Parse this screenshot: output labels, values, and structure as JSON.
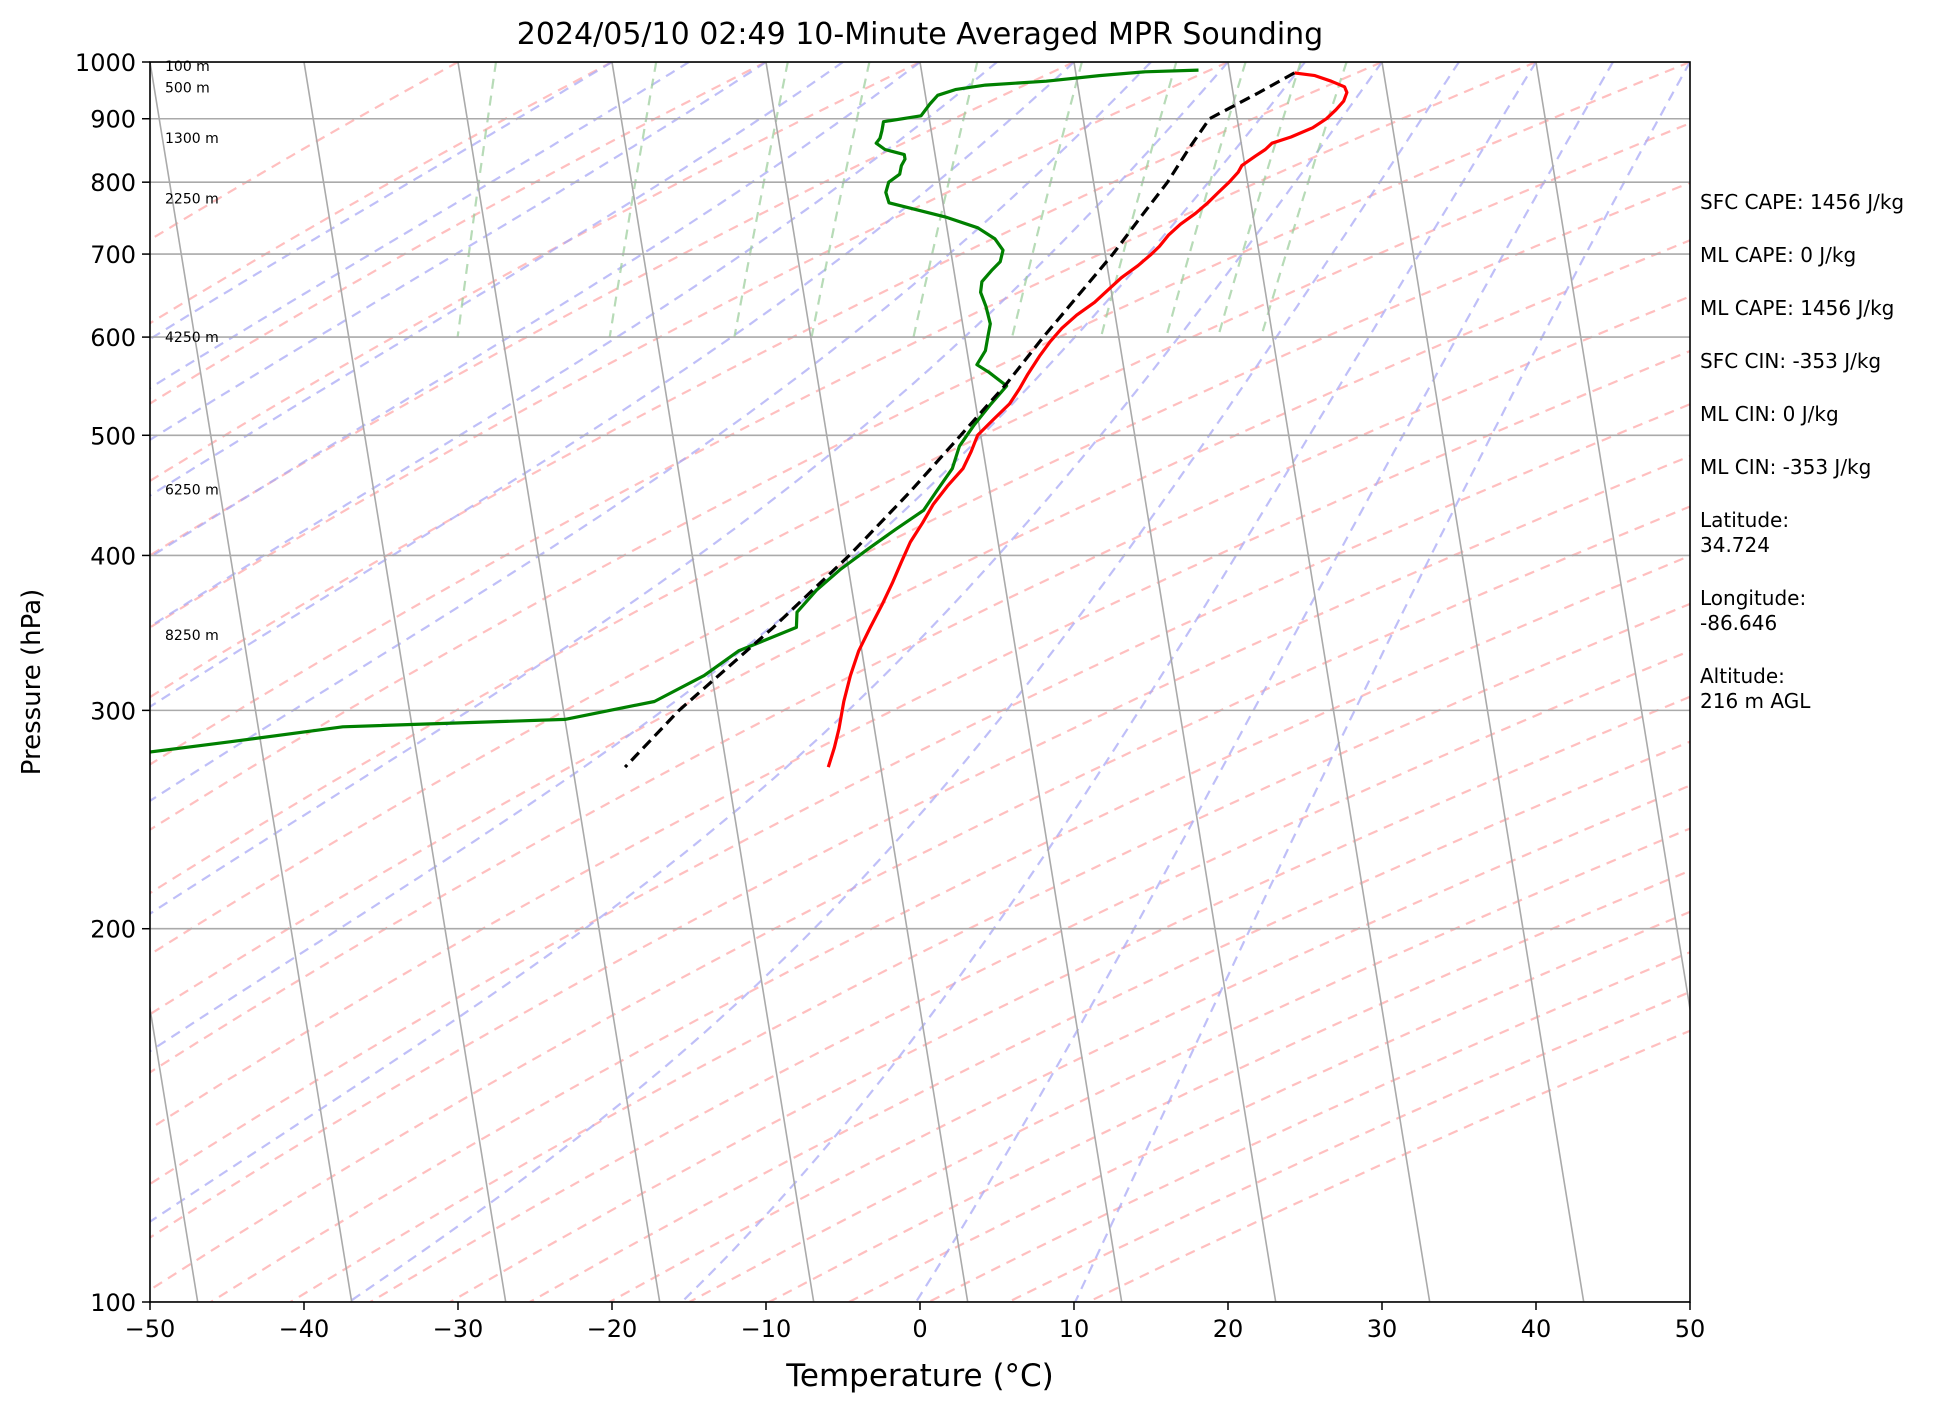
{
  "chart_data": {
    "type": "line",
    "title": "2024/05/10 02:49 10-Minute Averaged MPR Sounding",
    "xlabel": "Temperature (°C)",
    "ylabel": "Pressure (hPa)",
    "xlim": [
      -50,
      50
    ],
    "ylim": [
      1000,
      100
    ],
    "y_scale": "log",
    "skew_t": true,
    "grid": true,
    "x_ticks": [
      "−50",
      "−40",
      "−30",
      "−20",
      "−10",
      "0",
      "10",
      "20",
      "30",
      "40",
      "50"
    ],
    "y_ticks": [
      "100",
      "200",
      "300",
      "400",
      "500",
      "600",
      "700",
      "800",
      "900",
      "1000"
    ],
    "x_tick_values": [
      -50,
      -40,
      -30,
      -20,
      -10,
      0,
      10,
      20,
      30,
      40,
      50
    ],
    "y_tick_values": [
      100,
      200,
      300,
      400,
      500,
      600,
      700,
      800,
      900,
      1000
    ],
    "height_labels": [
      {
        "text": "8250 m",
        "p": 345
      },
      {
        "text": "6250 m",
        "p": 452
      },
      {
        "text": "4250 m",
        "p": 600
      },
      {
        "text": "2250 m",
        "p": 776
      },
      {
        "text": "1300 m",
        "p": 868
      },
      {
        "text": "500 m",
        "p": 954
      },
      {
        "text": "100 m",
        "p": 993
      }
    ],
    "series": [
      {
        "color": "#ff0000",
        "style": "solid",
        "points": [
          [
            980,
            24.2
          ],
          [
            975,
            25.5
          ],
          [
            965,
            26.5
          ],
          [
            955,
            27.3
          ],
          [
            945,
            27.4
          ],
          [
            930,
            27.1
          ],
          [
            915,
            26.5
          ],
          [
            900,
            25.8
          ],
          [
            885,
            24.8
          ],
          [
            870,
            23.3
          ],
          [
            860,
            22.0
          ],
          [
            850,
            21.5
          ],
          [
            840,
            20.8
          ],
          [
            825,
            19.8
          ],
          [
            815,
            19.5
          ],
          [
            800,
            18.8
          ],
          [
            785,
            18.0
          ],
          [
            770,
            17.2
          ],
          [
            755,
            16.3
          ],
          [
            740,
            15.2
          ],
          [
            725,
            14.3
          ],
          [
            710,
            13.6
          ],
          [
            700,
            13.0
          ],
          [
            685,
            12.0
          ],
          [
            670,
            10.8
          ],
          [
            655,
            9.8
          ],
          [
            640,
            8.8
          ],
          [
            625,
            7.5
          ],
          [
            610,
            6.4
          ],
          [
            595,
            5.5
          ],
          [
            580,
            4.7
          ],
          [
            560,
            3.7
          ],
          [
            545,
            3.0
          ],
          [
            530,
            2.2
          ],
          [
            515,
            1.0
          ],
          [
            500,
            -0.2
          ],
          [
            485,
            -0.8
          ],
          [
            470,
            -1.5
          ],
          [
            455,
            -2.7
          ],
          [
            440,
            -3.8
          ],
          [
            425,
            -4.7
          ],
          [
            410,
            -5.7
          ],
          [
            395,
            -6.5
          ],
          [
            380,
            -7.3
          ],
          [
            365,
            -8.2
          ],
          [
            350,
            -9.2
          ],
          [
            335,
            -10.2
          ],
          [
            320,
            -11.0
          ],
          [
            305,
            -11.7
          ],
          [
            290,
            -12.3
          ],
          [
            280,
            -12.8
          ],
          [
            270,
            -13.4
          ]
        ]
      },
      {
        "color": "#008000",
        "style": "solid",
        "points": [
          [
            985,
            18.0
          ],
          [
            982,
            14.5
          ],
          [
            975,
            11.5
          ],
          [
            965,
            8.0
          ],
          [
            958,
            4.0
          ],
          [
            950,
            2.0
          ],
          [
            940,
            0.8
          ],
          [
            925,
            0.2
          ],
          [
            905,
            -0.5
          ],
          [
            895,
            -3.0
          ],
          [
            880,
            -3.2
          ],
          [
            868,
            -3.4
          ],
          [
            860,
            -3.7
          ],
          [
            850,
            -3.2
          ],
          [
            842,
            -2.0
          ],
          [
            835,
            -2.0
          ],
          [
            825,
            -2.3
          ],
          [
            812,
            -2.5
          ],
          [
            800,
            -3.3
          ],
          [
            785,
            -3.6
          ],
          [
            770,
            -3.5
          ],
          [
            750,
            0.0
          ],
          [
            735,
            2.0
          ],
          [
            720,
            3.0
          ],
          [
            705,
            3.4
          ],
          [
            690,
            3.1
          ],
          [
            680,
            2.5
          ],
          [
            665,
            1.7
          ],
          [
            652,
            1.5
          ],
          [
            635,
            1.7
          ],
          [
            615,
            1.8
          ],
          [
            600,
            1.5
          ],
          [
            585,
            1.2
          ],
          [
            570,
            0.5
          ],
          [
            562,
            1.2
          ],
          [
            548,
            2.2
          ],
          [
            530,
            1.0
          ],
          [
            510,
            -0.3
          ],
          [
            490,
            -1.5
          ],
          [
            470,
            -2.2
          ],
          [
            450,
            -3.5
          ],
          [
            435,
            -4.5
          ],
          [
            420,
            -6.5
          ],
          [
            405,
            -8.5
          ],
          [
            390,
            -10.5
          ],
          [
            375,
            -12.3
          ],
          [
            360,
            -13.8
          ],
          [
            350,
            -14.0
          ],
          [
            335,
            -18.0
          ],
          [
            320,
            -20.5
          ],
          [
            305,
            -24.0
          ],
          [
            295,
            -30.0
          ],
          [
            291,
            -44.5
          ],
          [
            283,
            -52.0
          ],
          [
            275,
            -60.0
          ]
        ]
      },
      {
        "color": "#000000",
        "style": "dashed",
        "points": [
          [
            980,
            24.2
          ],
          [
            945,
            21.7
          ],
          [
            900,
            18.2
          ],
          [
            850,
            16.5
          ],
          [
            800,
            14.8
          ],
          [
            750,
            12.7
          ],
          [
            700,
            10.5
          ],
          [
            650,
            7.9
          ],
          [
            600,
            5.1
          ],
          [
            550,
            2.2
          ],
          [
            500,
            -1.3
          ],
          [
            450,
            -5.2
          ],
          [
            400,
            -9.8
          ],
          [
            350,
            -15.5
          ],
          [
            300,
            -22.5
          ],
          [
            270,
            -26.6
          ]
        ]
      }
    ]
  },
  "stats": {
    "sfc_cape": "SFC CAPE: 1456 J/kg",
    "ml_cape_1": "ML CAPE: 0 J/kg",
    "ml_cape_2": "ML CAPE: 1456 J/kg",
    "sfc_cin": "SFC CIN: -353 J/kg",
    "ml_cin_1": "ML CIN: 0 J/kg",
    "ml_cin_2": "ML CIN: -353 J/kg",
    "latitude_label": "Latitude:",
    "latitude_value": "34.724",
    "longitude_label": "Longitude:",
    "longitude_value": "-86.646",
    "altitude_label": "Altitude:",
    "altitude_value": "216 m AGL"
  }
}
